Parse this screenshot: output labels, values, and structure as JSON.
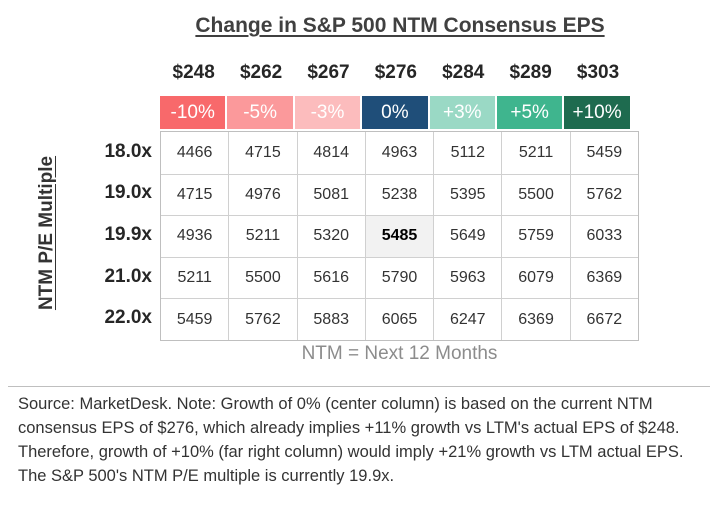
{
  "chart_data": {
    "type": "table",
    "title": "Change in S&P 500 NTM Consensus EPS",
    "ylabel": "NTM P/E Multiple",
    "eps_headers": [
      "$248",
      "$262",
      "$267",
      "$276",
      "$284",
      "$289",
      "$303"
    ],
    "growth_headers": [
      {
        "label": "-10%",
        "color": "#f8696b"
      },
      {
        "label": "-5%",
        "color": "#fb999b"
      },
      {
        "label": "-3%",
        "color": "#fcbcbd"
      },
      {
        "label": "0%",
        "color": "#1f4e79"
      },
      {
        "label": "+3%",
        "color": "#9ad9c5"
      },
      {
        "label": "+5%",
        "color": "#3fb58e"
      },
      {
        "label": "+10%",
        "color": "#1e6b4f"
      }
    ],
    "row_labels": [
      "18.0x",
      "19.0x",
      "19.9x",
      "21.0x",
      "22.0x"
    ],
    "rows": [
      [
        "4466",
        "4715",
        "4814",
        "4963",
        "5112",
        "5211",
        "5459"
      ],
      [
        "4715",
        "4976",
        "5081",
        "5238",
        "5395",
        "5500",
        "5762"
      ],
      [
        "4936",
        "5211",
        "5320",
        "5485",
        "5649",
        "5759",
        "6033"
      ],
      [
        "5211",
        "5500",
        "5616",
        "5790",
        "5963",
        "6079",
        "6369"
      ],
      [
        "5459",
        "5762",
        "5883",
        "6065",
        "6247",
        "6369",
        "6672"
      ]
    ],
    "highlight_cell": {
      "row": 2,
      "col": 3
    }
  },
  "footnote": "NTM = Next 12 Months",
  "source": "Source: MarketDesk. Note: Growth of 0% (center column) is based on the current NTM consensus EPS of $276, which already implies +11% growth vs LTM's actual EPS of $248. Therefore, growth of +10% (far right column) would imply +21% growth vs LTM actual EPS. The S&P 500's NTM P/E multiple is currently 19.9x."
}
